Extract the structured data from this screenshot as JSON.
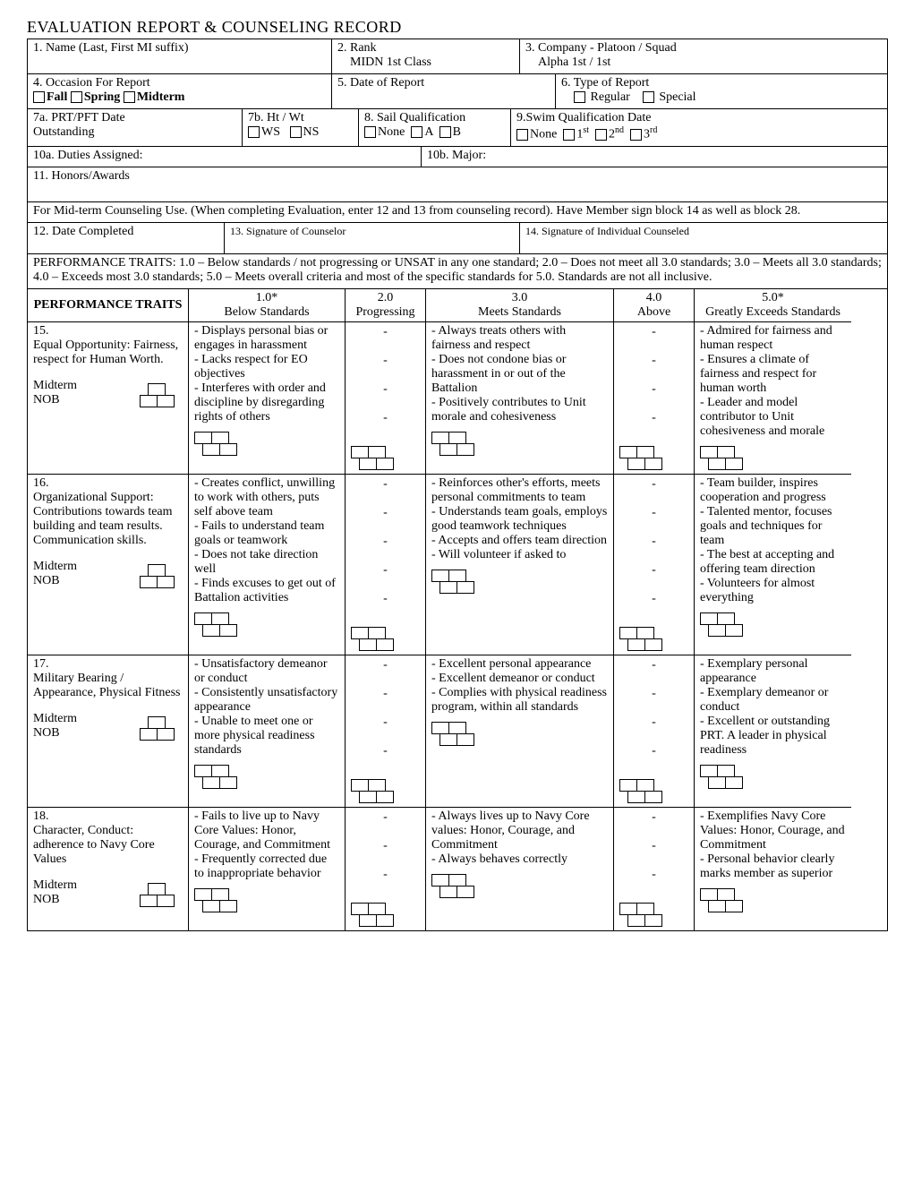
{
  "title": "EVALUATION REPORT & COUNSELING RECORD",
  "fields": {
    "f1_label": "1. Name  (Last, First MI suffix)",
    "f2_label": "2. Rank",
    "f2_value": "MIDN 1st Class",
    "f3_label": "3. Company - Platoon / Squad",
    "f3_value": "Alpha  1st / 1st",
    "f4_label": "4. Occasion For Report",
    "f4_fall": "Fall",
    "f4_spring": "Spring",
    "f4_midterm": "Midterm",
    "f5_label": "5. Date of Report",
    "f6_label": "6. Type of Report",
    "f6_regular": "Regular",
    "f6_special": "Special",
    "f7a_label": "7a. PRT/PFT             Date",
    "f7a_value": "Outstanding",
    "f7b_label": "7b.  Ht / Wt",
    "f7b_ws": "WS",
    "f7b_ns": "NS",
    "f8_label": "8. Sail Qualification",
    "f8_none": "None",
    "f8_a": "A",
    "f8_b": "B",
    "f9_label": "9.Swim Qualification                        Date",
    "f9_none": "None",
    "f9_1": "1",
    "f9_2": "2",
    "f9_3": "3",
    "st": "st",
    "nd": "nd",
    "rd": "rd",
    "f10a_label": "10a.  Duties Assigned:",
    "f10b_label": "10b.  Major:",
    "f11_label": "11. Honors/Awards",
    "midterm_note": "For Mid-term Counseling Use.  (When completing Evaluation, enter 12 and 13 from counseling record).  Have Member sign block 14 as well as block 28.",
    "f12_label": "12. Date Completed",
    "f13_label": "13. Signature of Counselor",
    "f14_label": "14. Signature of Individual Counseled",
    "perf_note": "PERFORMANCE TRAITS:  1.0 – Below standards / not progressing or UNSAT in any one standard;  2.0 – Does not meet all 3.0 standards;  3.0 – Meets all 3.0 standards;  4.0 – Exceeds most 3.0 standards;  5.0 – Meets overall criteria and most of the specific standards for 5.0.  Standards are not all inclusive."
  },
  "pt_header": {
    "label": "PERFORMANCE TRAITS",
    "c1": "1.0*",
    "c1b": "Below Standards",
    "c2": "2.0",
    "c2b": "Progressing",
    "c3": "3.0",
    "c3b": "Meets Standards",
    "c4": "4.0",
    "c4b": "Above",
    "c5": "5.0*",
    "c5b": "Greatly Exceeds Standards"
  },
  "midterm": "Midterm",
  "nob": "NOB",
  "dash": "-",
  "traits": [
    {
      "num": "15.",
      "title": "Equal Opportunity: Fairness, respect for Human Worth.",
      "low": "- Displays personal bias or engages in harassment\n- Lacks respect for EO objectives\n- Interferes with order and discipline by disregarding rights of others",
      "mid": "- Always treats others with fairness and respect\n- Does not condone bias or harassment in or out of the Battalion\n- Positively contributes to Unit morale and cohesiveness",
      "high": "- Admired for fairness and human respect\n- Ensures a climate of fairness and respect for human worth\n- Leader and model contributor to Unit cohesiveness and morale",
      "dashcount": 4
    },
    {
      "num": "16.",
      "title": "Organizational Support: Contributions towards team building and team results. Communication skills.",
      "low": "- Creates conflict, unwilling to work with others, puts self above team\n- Fails to understand team goals or teamwork\n- Does not take direction well\n- Finds excuses to get out of Battalion activities",
      "mid": "- Reinforces other's efforts, meets personal commitments to team\n- Understands team goals, employs good teamwork techniques\n- Accepts and offers team direction\n- Will volunteer if asked to",
      "high": "- Team builder, inspires cooperation and progress\n- Talented mentor, focuses goals and techniques for team\n- The best at accepting and offering team direction\n- Volunteers for almost everything",
      "dashcount": 5
    },
    {
      "num": "17.",
      "title": "Military Bearing / Appearance, Physical Fitness",
      "low": "- Unsatisfactory demeanor or conduct\n- Consistently unsatisfactory appearance\n- Unable to meet one or more physical readiness standards",
      "mid": "- Excellent personal appearance\n- Excellent demeanor or conduct\n- Complies with physical readiness program, within all standards",
      "high": "- Exemplary personal appearance\n- Exemplary demeanor or conduct\n- Excellent or outstanding PRT.  A leader in physical readiness",
      "dashcount": 4
    },
    {
      "num": "18.",
      "title": "Character, Conduct: adherence to Navy Core Values",
      "low": "- Fails to live up to Navy Core Values: Honor, Courage, and Commitment\n- Frequently corrected due to inappropriate behavior",
      "mid": "- Always lives up to Navy Core values: Honor, Courage, and Commitment\n- Always behaves correctly",
      "high": "- Exemplifies Navy Core Values: Honor, Courage, and Commitment\n- Personal behavior clearly marks member as superior",
      "dashcount": 3
    }
  ]
}
